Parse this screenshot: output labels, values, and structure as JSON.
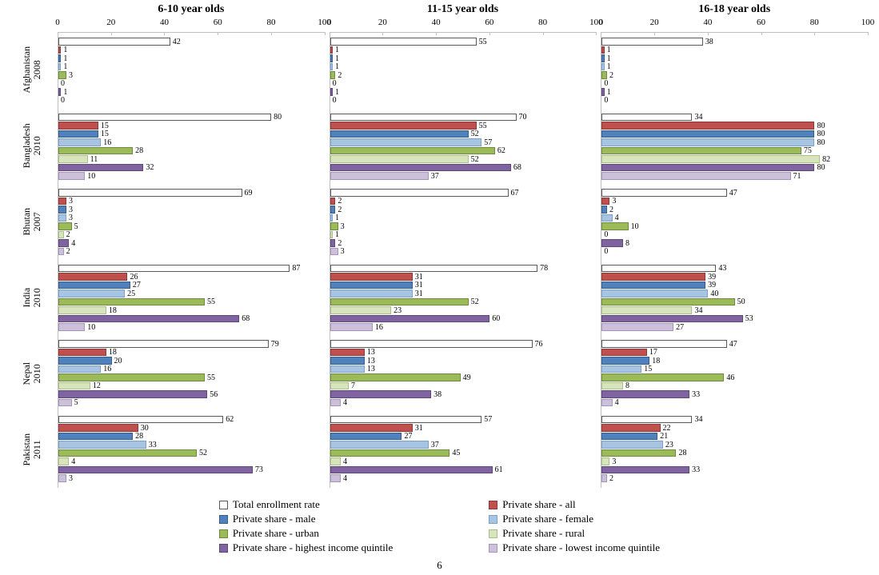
{
  "page_number": "6",
  "xlim": [
    0,
    100
  ],
  "xtick_step": 20,
  "background_color": "#ffffff",
  "axis_color": "#bfbfbf",
  "label_fontsize": 10,
  "title_fontsize": 14,
  "series": [
    {
      "key": "total",
      "label": "Total enrollment rate",
      "fill": "#ffffff",
      "border": "#595959"
    },
    {
      "key": "all",
      "label": "Private share - all",
      "fill": "#c0504d",
      "border": "#8c3a37"
    },
    {
      "key": "male",
      "label": "Private share - male",
      "fill": "#4f81bd",
      "border": "#385d8a"
    },
    {
      "key": "female",
      "label": "Private share - female",
      "fill": "#a7c5e3",
      "border": "#7ba0c9"
    },
    {
      "key": "urban",
      "label": "Private share - urban",
      "fill": "#9bbb59",
      "border": "#71893f"
    },
    {
      "key": "rural",
      "label": "Private share - rural",
      "fill": "#d7e4bc",
      "border": "#a8bf87"
    },
    {
      "key": "hiq",
      "label": "Private share - highest income quintile",
      "fill": "#8064a2",
      "border": "#5c4776"
    },
    {
      "key": "loq",
      "label": "Private share - lowest income quintile",
      "fill": "#ccc0da",
      "border": "#a395b9"
    }
  ],
  "panels": [
    {
      "title": "6-10 year olds"
    },
    {
      "title": "11-15 year olds"
    },
    {
      "title": "16-18 year olds"
    }
  ],
  "countries": [
    {
      "label": "Afghanistan\n2008",
      "data": [
        {
          "total": 42,
          "all": 1,
          "male": 1,
          "female": 1,
          "urban": 3,
          "rural": 0,
          "hiq": 1,
          "loq": 0
        },
        {
          "total": 55,
          "all": 1,
          "male": 1,
          "female": 1,
          "urban": 2,
          "rural": 0,
          "hiq": 1,
          "loq": 0
        },
        {
          "total": 38,
          "all": 1,
          "male": 1,
          "female": 1,
          "urban": 2,
          "rural": 0,
          "hiq": 1,
          "loq": 0
        }
      ]
    },
    {
      "label": "Bangladesh\n2010",
      "data": [
        {
          "total": 80,
          "all": 15,
          "male": 15,
          "female": 16,
          "urban": 28,
          "rural": 11,
          "hiq": 32,
          "loq": 10
        },
        {
          "total": 70,
          "all": 55,
          "male": 52,
          "female": 57,
          "urban": 62,
          "rural": 52,
          "hiq": 68,
          "loq": 37
        },
        {
          "total": 34,
          "all": 80,
          "male": 80,
          "female": 80,
          "urban": 75,
          "rural": 82,
          "hiq": 80,
          "loq": 71
        }
      ]
    },
    {
      "label": "Bhutan\n2007",
      "data": [
        {
          "total": 69,
          "all": 3,
          "male": 3,
          "female": 3,
          "urban": 5,
          "rural": 2,
          "hiq": 4,
          "loq": 2
        },
        {
          "total": 67,
          "all": 2,
          "male": 2,
          "female": 1,
          "urban": 3,
          "rural": 1,
          "hiq": 2,
          "loq": 3
        },
        {
          "total": 47,
          "all": 3,
          "male": 2,
          "female": 4,
          "urban": 10,
          "rural": 0,
          "hiq": 8,
          "loq": 0
        }
      ]
    },
    {
      "label": "India\n2010",
      "data": [
        {
          "total": 87,
          "all": 26,
          "male": 27,
          "female": 25,
          "urban": 55,
          "rural": 18,
          "hiq": 68,
          "loq": 10
        },
        {
          "total": 78,
          "all": 31,
          "male": 31,
          "female": 31,
          "urban": 52,
          "rural": 23,
          "hiq": 60,
          "loq": 16
        },
        {
          "total": 43,
          "all": 39,
          "male": 39,
          "female": 40,
          "urban": 50,
          "rural": 34,
          "hiq": 53,
          "loq": 27
        }
      ]
    },
    {
      "label": "Nepal\n2010",
      "data": [
        {
          "total": 79,
          "all": 18,
          "male": 20,
          "female": 16,
          "urban": 55,
          "rural": 12,
          "hiq": 56,
          "loq": 5
        },
        {
          "total": 76,
          "all": 13,
          "male": 13,
          "female": 13,
          "urban": 49,
          "rural": 7,
          "hiq": 38,
          "loq": 4
        },
        {
          "total": 47,
          "all": 17,
          "male": 18,
          "female": 15,
          "urban": 46,
          "rural": 8,
          "hiq": 33,
          "loq": 4
        }
      ]
    },
    {
      "label": "Pakistan\n2011",
      "data": [
        {
          "total": 62,
          "all": 30,
          "male": 28,
          "female": 33,
          "urban": 52,
          "rural": 4,
          "hiq": 73,
          "loq": 3
        },
        {
          "total": 57,
          "all": 31,
          "male": 27,
          "female": 37,
          "urban": 45,
          "rural": 4,
          "hiq": 61,
          "loq": 4
        },
        {
          "total": 34,
          "all": 22,
          "male": 21,
          "female": 23,
          "urban": 28,
          "rural": 3,
          "hiq": 33,
          "loq": 2
        }
      ]
    }
  ]
}
